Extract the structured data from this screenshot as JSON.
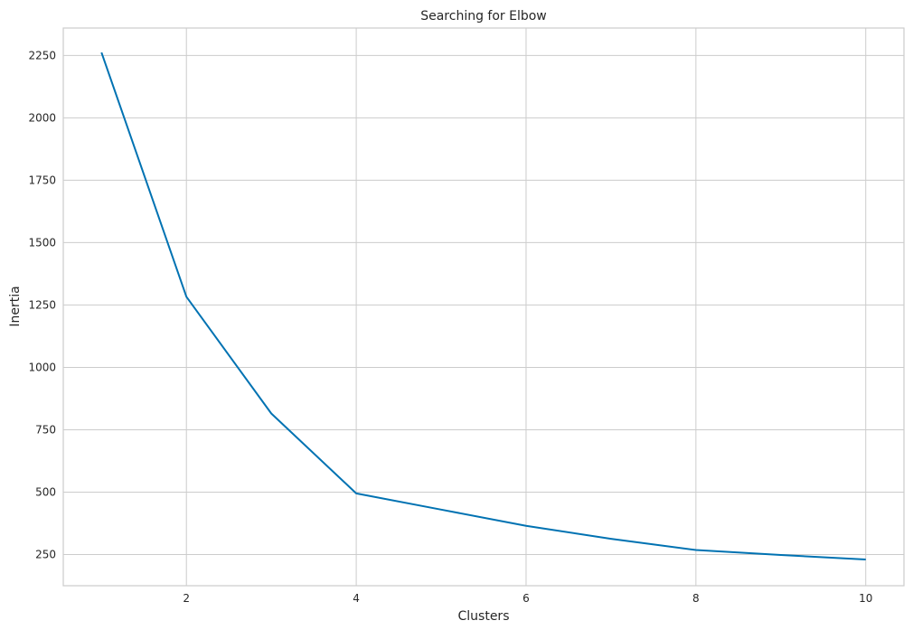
{
  "chart_data": {
    "type": "line",
    "title": "Searching for Elbow",
    "xlabel": "Clusters",
    "ylabel": "Inertia",
    "xlim": [
      0.55,
      10.45
    ],
    "ylim": [
      125,
      2360
    ],
    "xticks": [
      2,
      4,
      6,
      8,
      10
    ],
    "yticks": [
      250,
      500,
      750,
      1000,
      1250,
      1500,
      1750,
      2000,
      2250
    ],
    "grid": true,
    "line_color": "#0072b2",
    "grid_color": "#cccccc",
    "series": [
      {
        "x": [
          1,
          2,
          3,
          4,
          5,
          6,
          7,
          8,
          9,
          10
        ],
        "values": [
          2262,
          1283,
          815,
          495,
          430,
          365,
          313,
          268,
          248,
          230
        ]
      }
    ]
  }
}
